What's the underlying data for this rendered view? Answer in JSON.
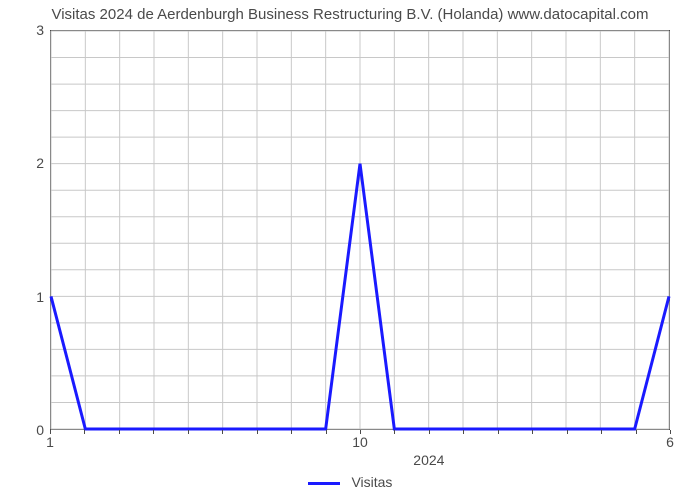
{
  "chart": {
    "type": "line",
    "title": "Visitas 2024 de Aerdenburgh Business Restructuring B.V. (Holanda) www.datocapital.com",
    "title_fontsize": 15,
    "title_color": "#4a4a4a",
    "background_color": "#ffffff",
    "plot_border_color": "#4a4a4a",
    "grid_color": "#c8c8c8",
    "grid_line_width": 1,
    "series": {
      "name": "Visitas",
      "color": "#1a1aff",
      "line_width": 3,
      "x": [
        1,
        2,
        3,
        4,
        5,
        6,
        7,
        8,
        9,
        10,
        11,
        12,
        13,
        14,
        15,
        16,
        17,
        18,
        19
      ],
      "y": [
        1,
        0,
        0,
        0,
        0,
        0,
        0,
        0,
        0,
        2,
        0,
        0,
        0,
        0,
        0,
        0,
        0,
        0,
        1
      ]
    },
    "x_axis": {
      "min": 1,
      "max": 19,
      "major_ticks": [
        1,
        10,
        19
      ],
      "major_labels": [
        "1",
        "10",
        "6"
      ],
      "minor_tick_step": 1,
      "sub_label": "2024",
      "sub_label_x": 12,
      "label_fontsize": 14
    },
    "y_axis": {
      "min": 0,
      "max": 3,
      "ticks": [
        0,
        1,
        2,
        3
      ],
      "labels": [
        "0",
        "1",
        "2",
        "3"
      ],
      "minor_grid_step": 0.2,
      "label_fontsize": 14
    },
    "legend": {
      "label": "Visitas",
      "line_color": "#1a1aff",
      "fontsize": 14
    }
  }
}
